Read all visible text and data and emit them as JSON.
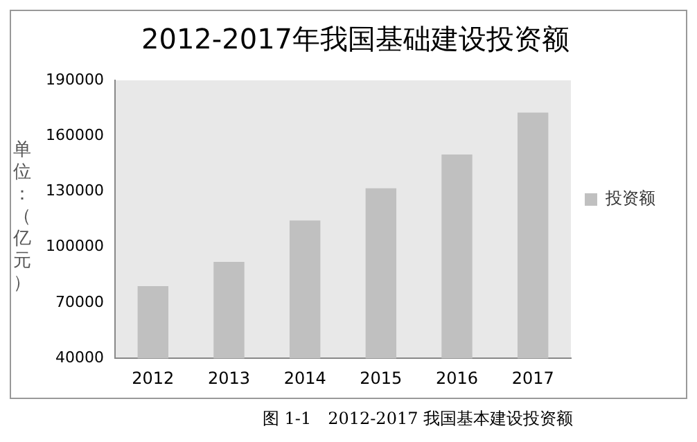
{
  "chart_data": {
    "type": "bar",
    "title": "2012-2017年我国基础建设投资额",
    "ylabel": "单位：（亿元）",
    "categories": [
      "2012",
      "2013",
      "2014",
      "2015",
      "2016",
      "2017"
    ],
    "series": [
      {
        "name": "投资额",
        "color": "#c0c0c0",
        "values": [
          79000,
          92000,
          114400,
          131800,
          150000,
          172600
        ]
      }
    ],
    "ylim": [
      40000,
      190000
    ],
    "yticks": [
      40000,
      70000,
      100000,
      130000,
      160000,
      190000
    ],
    "grid": false,
    "legend": "right",
    "annotations": [
      "图 1-1　2012-2017 我国基本建设投资额"
    ]
  }
}
